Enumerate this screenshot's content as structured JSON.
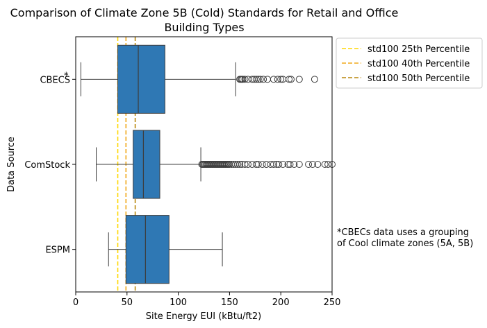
{
  "chart_data": {
    "type": "boxplot",
    "orientation": "horizontal",
    "title_lines": [
      "Comparison of Climate Zone 5B (Cold) Standards for Retail and Office",
      "Building Types"
    ],
    "xlabel": "Site Energy EUI (kBtu/ft2)",
    "ylabel": "Data Source",
    "xlim": [
      0,
      250
    ],
    "xticks": [
      0,
      50,
      100,
      150,
      200,
      250
    ],
    "box_color": "#2f78b4",
    "categories": [
      {
        "name": "CBECS",
        "marker": "*",
        "whisker_low": 5,
        "q1": 41,
        "median": 61,
        "q3": 87,
        "whisker_high": 156,
        "outliers": [
          160,
          161,
          162,
          163,
          165,
          168,
          172,
          174,
          176,
          178,
          180,
          183,
          187,
          193,
          197,
          200,
          202,
          208,
          210,
          218,
          233
        ]
      },
      {
        "name": "ComStock",
        "marker": "",
        "whisker_low": 20,
        "q1": 56,
        "median": 66,
        "q3": 82,
        "whisker_high": 122,
        "outliers": [
          123,
          124,
          125,
          126,
          127,
          128,
          129,
          130,
          131,
          132,
          133,
          134,
          135,
          136,
          137,
          138,
          139,
          140,
          141,
          142,
          143,
          144,
          145,
          146,
          147,
          148,
          149,
          150,
          152,
          154,
          156,
          158,
          160,
          162,
          165,
          168,
          172,
          176,
          178,
          182,
          186,
          190,
          193,
          196,
          198,
          202,
          207,
          209,
          213,
          218,
          227,
          231,
          236,
          243,
          246,
          250
        ]
      },
      {
        "name": "ESPM",
        "marker": "",
        "whisker_low": 32,
        "q1": 49,
        "median": 68,
        "q3": 91,
        "whisker_high": 143,
        "outliers": []
      }
    ],
    "reference_lines": [
      {
        "label": "std100 25th Percentile",
        "value": 41,
        "color": "#ffd700"
      },
      {
        "label": "std100 40th Percentile",
        "value": 49,
        "color": "#f0a81a"
      },
      {
        "label": "std100 50th Percentile",
        "value": 58,
        "color": "#b8860b"
      }
    ],
    "legend_position": "upper-right-outside",
    "annotation_lines": [
      "*CBECs data uses a grouping",
      "of Cool climate zones (5A, 5B)"
    ]
  }
}
